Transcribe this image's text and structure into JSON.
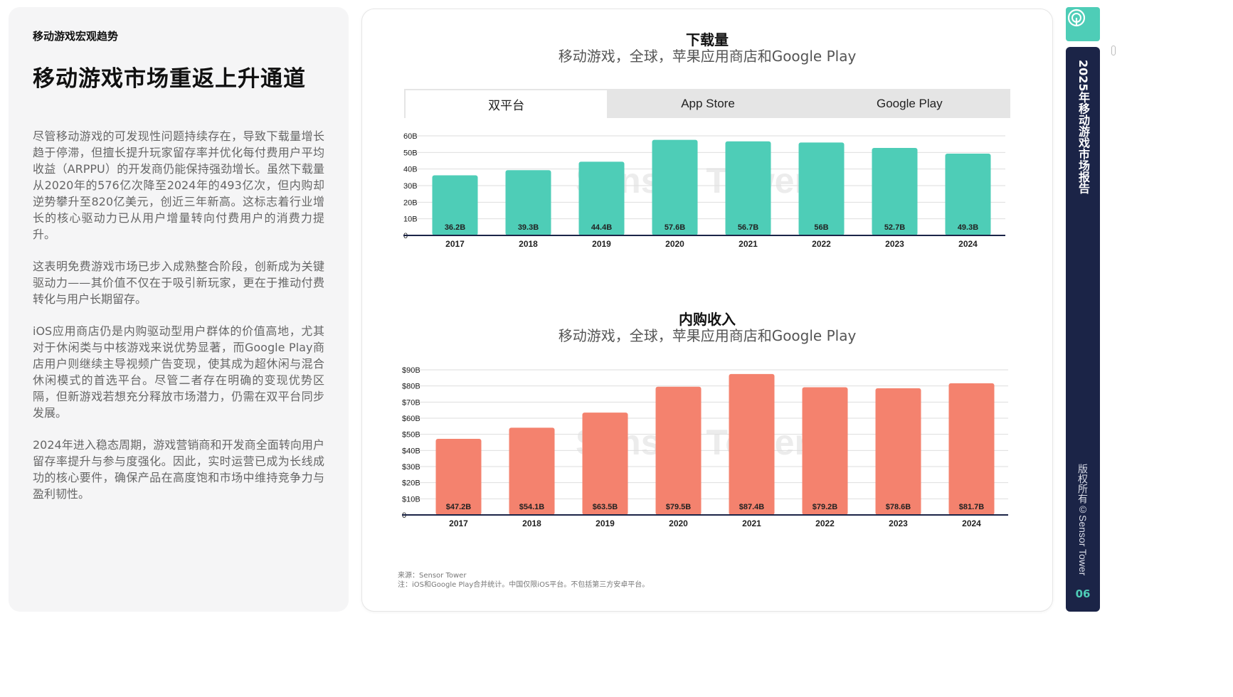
{
  "left": {
    "kicker": "移动游戏宏观趋势",
    "title": "移动游戏市场重返上升通道",
    "paragraphs": [
      "尽管移动游戏的可发现性问题持续存在，导致下载量增长趋于停滞，但擅长提升玩家留存率并优化每付费用户平均收益（ARPPU）的开发商仍能保持强劲增长。虽然下载量从2020年的576亿次降至2024年的493亿次，但内购却逆势攀升至820亿美元，创近三年新高。这标志着行业增长的核心驱动力已从用户增量转向付费用户的消费力提升。",
      "这表明免费游戏市场已步入成熟整合阶段，创新成为关键驱动力——其价值不仅在于吸引新玩家，更在于推动付费转化与用户长期留存。",
      "iOS应用商店仍是内购驱动型用户群体的价值高地，尤其对于休闲类与中核游戏来说优势显著，而Google Play商店用户则继续主导视频广告变现，使其成为超休闲与混合休闲模式的首选平台。尽管二者存在明确的变现优势区隔，但新游戏若想充分释放市场潜力，仍需在双平台同步发展。",
      "2024年进入稳态周期，游戏营销商和开发商全面转向用户留存率提升与参与度强化。因此，实时运营已成为长线成功的核心要件，确保产品在高度饱和市场中维持竞争力与盈利韧性。"
    ]
  },
  "tabs": [
    "双平台",
    "App Store",
    "Google Play"
  ],
  "watermark": "Sensor Tower",
  "source": {
    "line1": "来源：Sensor Tower",
    "line2": "注：iOS和Google Play合并统计。中国仅限iOS平台。不包括第三方安卓平台。"
  },
  "sidebar": {
    "title": "2025年移动游戏市场报告",
    "copyright": "版权所有©Sensor Tower",
    "page": "06"
  },
  "colors": {
    "teal": "#4ecdb7",
    "coral": "#f4826e",
    "navy": "#1b2447"
  },
  "chart_data": [
    {
      "type": "bar",
      "title": "下载量",
      "subtitle": "移动游戏，全球，苹果应用商店和Google Play",
      "categories": [
        "2017",
        "2018",
        "2019",
        "2020",
        "2021",
        "2022",
        "2023",
        "2024"
      ],
      "values": [
        36.2,
        39.3,
        44.4,
        57.6,
        56.7,
        56,
        52.7,
        49.3
      ],
      "value_labels": [
        "36.2B",
        "39.3B",
        "44.4B",
        "57.6B",
        "56.7B",
        "56B",
        "52.7B",
        "49.3B"
      ],
      "yticks": [
        "0",
        "10B",
        "20B",
        "30B",
        "40B",
        "50B",
        "60B"
      ],
      "ylim": [
        0,
        60
      ],
      "grid": true,
      "color": "#4ecdb7"
    },
    {
      "type": "bar",
      "title": "内购收入",
      "subtitle": "移动游戏，全球，苹果应用商店和Google Play",
      "categories": [
        "2017",
        "2018",
        "2019",
        "2020",
        "2021",
        "2022",
        "2023",
        "2024"
      ],
      "values": [
        47.2,
        54.1,
        63.5,
        79.5,
        87.4,
        79.2,
        78.6,
        81.7
      ],
      "value_labels": [
        "$47.2B",
        "$54.1B",
        "$63.5B",
        "$79.5B",
        "$87.4B",
        "$79.2B",
        "$78.6B",
        "$81.7B"
      ],
      "yticks": [
        "0",
        "$10B",
        "$20B",
        "$30B",
        "$40B",
        "$50B",
        "$60B",
        "$70B",
        "$80B",
        "$90B"
      ],
      "ylim": [
        0,
        90
      ],
      "grid": true,
      "color": "#f4826e"
    }
  ]
}
